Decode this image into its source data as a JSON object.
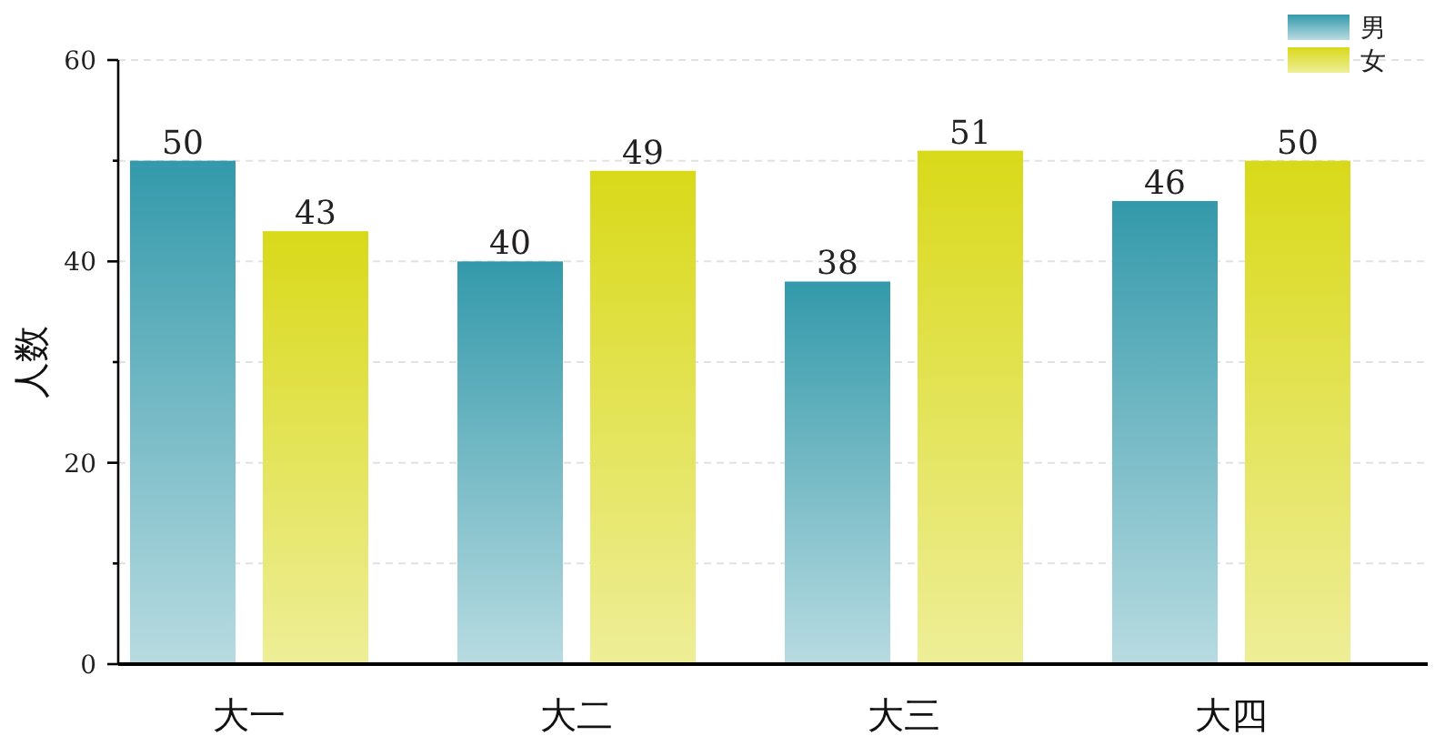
{
  "chart_data": {
    "type": "bar",
    "ylabel": "人数",
    "categories": [
      "大一",
      "大二",
      "大三",
      "大四"
    ],
    "series": [
      {
        "name": "男",
        "color": "#3399aa",
        "values": [
          50,
          40,
          38,
          46
        ]
      },
      {
        "name": "女",
        "color": "#d9d91a",
        "values": [
          43,
          49,
          51,
          50
        ]
      }
    ],
    "ylim": [
      0,
      60
    ],
    "yticks": [
      0,
      {
        "value": 10,
        "label": null
      },
      20,
      {
        "value": 30,
        "label": null
      },
      40,
      {
        "value": 50,
        "label": null
      },
      60
    ],
    "grid": "y",
    "legend": "top right",
    "data_labels": true
  }
}
